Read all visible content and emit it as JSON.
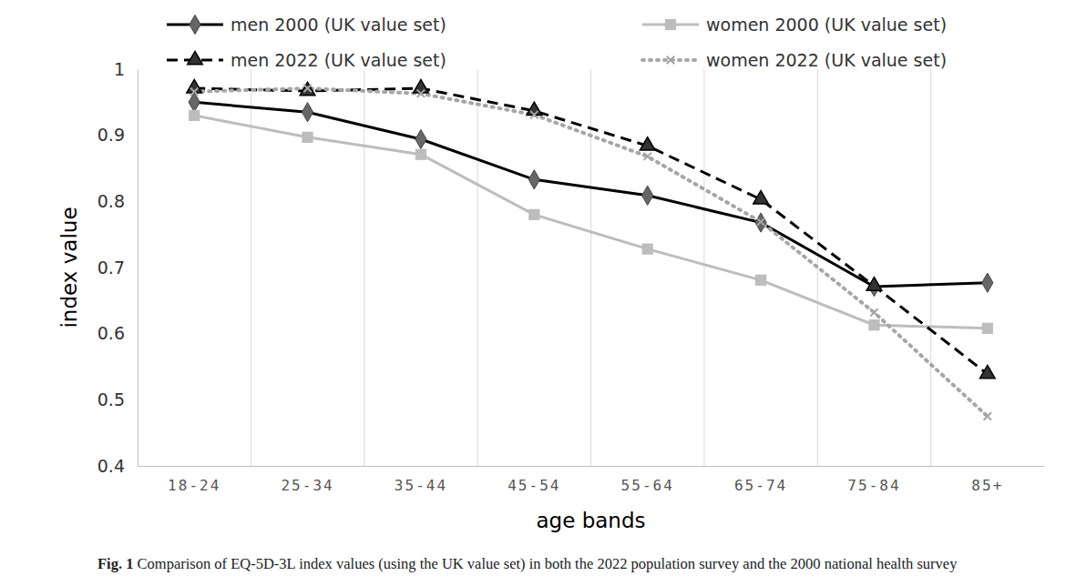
{
  "chart_data": {
    "type": "line",
    "caption": "Fig. 1 Comparison of EQ-5D-3L index values (using the UK value set) in both the 2022 population survey and the 2000 national health survey",
    "x_label": "age bands",
    "y_label": "index value",
    "categories": [
      "18-24",
      "25-34",
      "35-44",
      "45-54",
      "55-64",
      "65-74",
      "75-84",
      "85+"
    ],
    "series": [
      {
        "name": "men 2000 (UK value set)",
        "color": "#000000",
        "marker": "diamond",
        "line_style": "solid",
        "values": [
          0.95,
          0.935,
          0.894,
          0.833,
          0.809,
          0.768,
          0.671,
          0.677
        ]
      },
      {
        "name": "women 2000 (UK value set)",
        "color": "#bdbdbd",
        "marker": "square",
        "line_style": "solid",
        "values": [
          0.93,
          0.897,
          0.871,
          0.78,
          0.728,
          0.681,
          0.613,
          0.608
        ]
      },
      {
        "name": "men 2022 (UK value set)",
        "color": "#000000",
        "marker": "triangle",
        "line_style": "dashed",
        "values": [
          0.971,
          0.967,
          0.971,
          0.937,
          0.884,
          0.803,
          0.672,
          0.539
        ]
      },
      {
        "name": "women 2022 (UK value set)",
        "color": "#a6a6a6",
        "marker": "x",
        "line_style": "dotted",
        "values": [
          0.966,
          0.971,
          0.963,
          0.931,
          0.868,
          0.769,
          0.632,
          0.475
        ]
      }
    ],
    "ylim": [
      0.4,
      1
    ],
    "yticks": [
      0.4,
      0.5,
      0.6,
      0.7,
      0.8,
      0.9,
      1
    ],
    "grid": true,
    "legend": "top"
  }
}
